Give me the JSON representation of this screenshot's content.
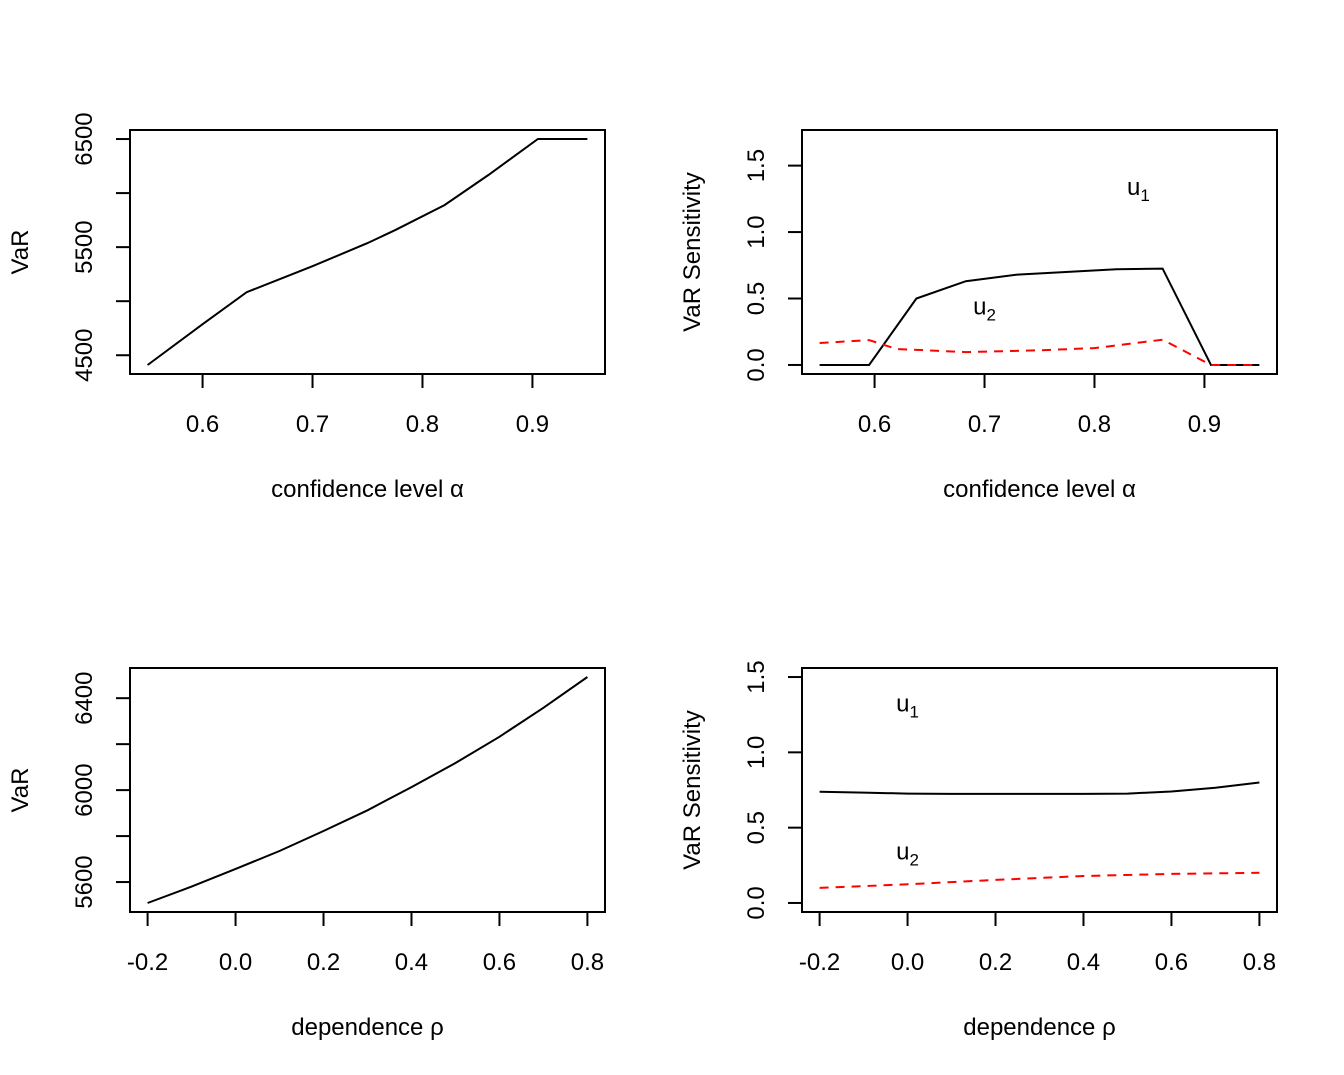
{
  "chart_data": [
    {
      "type": "line",
      "xlabel": "confidence level α",
      "ylabel": "VaR",
      "xlim": [
        0.55,
        0.95
      ],
      "ylim": [
        4410,
        6500
      ],
      "xticks": [
        0.6,
        0.7,
        0.8,
        0.9
      ],
      "xtick_labels": [
        "0.6",
        "0.7",
        "0.8",
        "0.9"
      ],
      "yticks": [
        4500,
        5000,
        5500,
        6000,
        6500
      ],
      "ytick_labels": [
        "4500",
        "",
        "5500",
        "",
        "6500"
      ],
      "series": [
        {
          "color": "#000000",
          "dash": "solid",
          "x": [
            0.55,
            0.6,
            0.64,
            0.7,
            0.75,
            0.775,
            0.82,
            0.86,
            0.905,
            0.95
          ],
          "y": [
            4410,
            4787,
            5083,
            5324,
            5537,
            5657,
            5889,
            6167,
            6500,
            6500
          ]
        }
      ],
      "annotations": []
    },
    {
      "type": "line",
      "xlabel": "confidence level α",
      "ylabel": "VaR Sensitivity",
      "xlim": [
        0.55,
        0.95
      ],
      "ylim": [
        0,
        1.7
      ],
      "xticks": [
        0.6,
        0.7,
        0.8,
        0.9
      ],
      "xtick_labels": [
        "0.6",
        "0.7",
        "0.8",
        "0.9"
      ],
      "yticks": [
        0,
        0.5,
        1.0,
        1.5
      ],
      "ytick_labels": [
        "0.0",
        "0.5",
        "1.0",
        "1.5"
      ],
      "series": [
        {
          "name": "u1",
          "color": "#000000",
          "dash": "solid",
          "x": [
            0.55,
            0.595,
            0.638,
            0.683,
            0.73,
            0.82,
            0.862,
            0.906,
            0.95
          ],
          "y": [
            0,
            0,
            0.5,
            0.63,
            0.68,
            0.72,
            0.725,
            0,
            0
          ]
        },
        {
          "name": "u2",
          "color": "#ff0000",
          "dash": "dashed",
          "x": [
            0.55,
            0.595,
            0.62,
            0.683,
            0.75,
            0.8,
            0.862,
            0.906,
            0.95
          ],
          "y": [
            0.165,
            0.187,
            0.12,
            0.097,
            0.11,
            0.127,
            0.19,
            0,
            0
          ]
        }
      ],
      "annotations": [
        {
          "base": "u",
          "sub": "1",
          "x": 0.84,
          "y": 1.28
        },
        {
          "base": "u",
          "sub": "2",
          "x": 0.7,
          "y": 0.38
        }
      ]
    },
    {
      "type": "line",
      "xlabel": "dependence ρ",
      "ylabel": "VaR",
      "xlim": [
        -0.2,
        0.8
      ],
      "ylim": [
        5509,
        6492
      ],
      "xticks": [
        -0.2,
        0.0,
        0.2,
        0.4,
        0.6,
        0.8
      ],
      "xtick_labels": [
        "-0.2",
        "0.0",
        "0.2",
        "0.4",
        "0.6",
        "0.8"
      ],
      "yticks": [
        5600,
        5800,
        6000,
        6200,
        6400
      ],
      "ytick_labels": [
        "5600",
        "",
        "6000",
        "",
        "6400"
      ],
      "series": [
        {
          "color": "#000000",
          "dash": "solid",
          "x": [
            -0.2,
            -0.1,
            0.0,
            0.1,
            0.2,
            0.3,
            0.4,
            0.5,
            0.6,
            0.7,
            0.8
          ],
          "y": [
            5509,
            5580,
            5657,
            5735,
            5822,
            5912,
            6013,
            6118,
            6232,
            6358,
            6492
          ]
        }
      ],
      "annotations": []
    },
    {
      "type": "line",
      "xlabel": "dependence ρ",
      "ylabel": "VaR Sensitivity",
      "xlim": [
        -0.2,
        0.8
      ],
      "ylim": [
        0,
        1.5
      ],
      "xticks": [
        -0.2,
        0.0,
        0.2,
        0.4,
        0.6,
        0.8
      ],
      "xtick_labels": [
        "-0.2",
        "0.0",
        "0.2",
        "0.4",
        "0.6",
        "0.8"
      ],
      "yticks": [
        0,
        0.5,
        1.0,
        1.5
      ],
      "ytick_labels": [
        "0.0",
        "0.5",
        "1.0",
        "1.5"
      ],
      "series": [
        {
          "name": "u1",
          "color": "#000000",
          "dash": "solid",
          "x": [
            -0.2,
            -0.1,
            0.0,
            0.1,
            0.2,
            0.3,
            0.4,
            0.5,
            0.6,
            0.7,
            0.8
          ],
          "y": [
            0.739,
            0.733,
            0.726,
            0.724,
            0.724,
            0.724,
            0.724,
            0.726,
            0.74,
            0.765,
            0.8
          ]
        },
        {
          "name": "u2",
          "color": "#ff0000",
          "dash": "dashed",
          "x": [
            -0.2,
            0.0,
            0.2,
            0.4,
            0.6,
            0.8
          ],
          "y": [
            0.1,
            0.124,
            0.153,
            0.179,
            0.193,
            0.2
          ]
        }
      ],
      "annotations": [
        {
          "base": "u",
          "sub": "1",
          "x": 0.0,
          "y": 1.27
        },
        {
          "base": "u",
          "sub": "2",
          "x": 0.0,
          "y": 0.29
        }
      ]
    }
  ]
}
